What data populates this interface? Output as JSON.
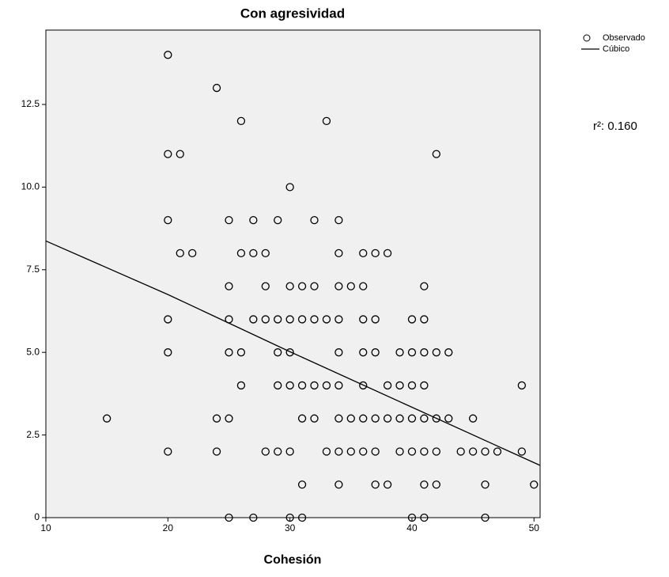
{
  "chart_data": {
    "type": "scatter",
    "title": "Con agresividad",
    "x_label": "Cohesión",
    "annotation": "r²: 0.160",
    "xlim": [
      10,
      50.5
    ],
    "ylim": [
      0,
      14.75
    ],
    "xticks": [
      10,
      20,
      30,
      40,
      50
    ],
    "yticks": [
      0,
      2.5,
      {
        "value": 5,
        "label": "5.0"
      },
      7.5,
      {
        "value": 10,
        "label": "10.0"
      },
      12.5
    ],
    "legend": "outside-right",
    "series": [
      {
        "name": "Observado",
        "type": "scatter",
        "color": "#000000",
        "x": [
          20,
          24,
          26,
          33,
          20,
          21,
          42,
          30,
          20,
          25,
          27,
          29,
          32,
          34,
          21,
          22,
          26,
          27,
          28,
          34,
          36,
          37,
          38,
          25,
          28,
          30,
          31,
          32,
          34,
          35,
          36,
          41,
          20,
          25,
          27,
          28,
          29,
          30,
          31,
          32,
          33,
          34,
          36,
          37,
          40,
          41,
          20,
          25,
          26,
          29,
          30,
          34,
          36,
          37,
          39,
          40,
          41,
          42,
          43,
          26,
          29,
          30,
          31,
          32,
          33,
          34,
          36,
          38,
          39,
          40,
          41,
          49,
          15,
          24,
          25,
          31,
          32,
          34,
          35,
          36,
          37,
          38,
          39,
          40,
          41,
          42,
          43,
          45,
          20,
          24,
          28,
          29,
          30,
          33,
          34,
          35,
          36,
          37,
          39,
          40,
          41,
          42,
          44,
          45,
          46,
          47,
          49,
          31,
          34,
          37,
          38,
          41,
          42,
          46,
          50,
          25,
          27,
          30,
          31,
          40,
          41,
          46
        ],
        "values": [
          14,
          13,
          12,
          12,
          11,
          11,
          11,
          10,
          9,
          9,
          9,
          9,
          9,
          9,
          8,
          8,
          8,
          8,
          8,
          8,
          8,
          8,
          8,
          7,
          7,
          7,
          7,
          7,
          7,
          7,
          7,
          7,
          6,
          6,
          6,
          6,
          6,
          6,
          6,
          6,
          6,
          6,
          6,
          6,
          6,
          6,
          5,
          5,
          5,
          5,
          5,
          5,
          5,
          5,
          5,
          5,
          5,
          5,
          5,
          4,
          4,
          4,
          4,
          4,
          4,
          4,
          4,
          4,
          4,
          4,
          4,
          4,
          3,
          3,
          3,
          3,
          3,
          3,
          3,
          3,
          3,
          3,
          3,
          3,
          3,
          3,
          3,
          3,
          2,
          2,
          2,
          2,
          2,
          2,
          2,
          2,
          2,
          2,
          2,
          2,
          2,
          2,
          2,
          2,
          2,
          2,
          2,
          1,
          1,
          1,
          1,
          1,
          1,
          1,
          1,
          0,
          0,
          0,
          0,
          0,
          0,
          0
        ]
      },
      {
        "name": "Cúbico",
        "type": "line",
        "color": "#000000",
        "x": [
          10,
          20,
          30,
          40,
          50.5
        ],
        "values": [
          8.37,
          6.75,
          5.02,
          3.34,
          1.58
        ]
      }
    ]
  }
}
